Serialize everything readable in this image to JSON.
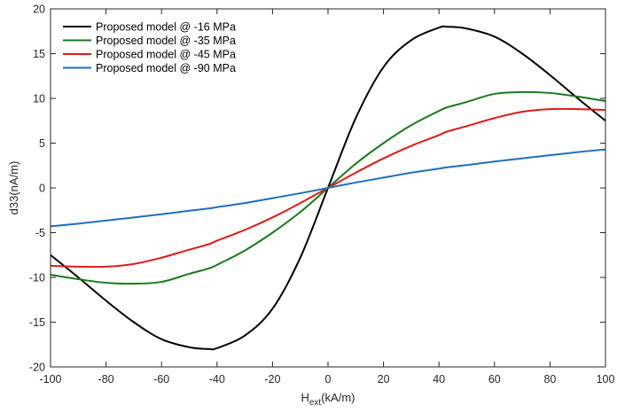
{
  "chart_data": {
    "type": "line",
    "xlabel_main": "H",
    "xlabel_sub": "ext",
    "xlabel_unit": "(kA/m)",
    "ylabel": "d33(nA/m)",
    "xlim": [
      -100,
      100
    ],
    "ylim": [
      -20,
      20
    ],
    "xticks": [
      -100,
      -80,
      -60,
      -40,
      -20,
      0,
      20,
      40,
      60,
      80,
      100
    ],
    "yticks": [
      -20,
      -15,
      -10,
      -5,
      0,
      5,
      10,
      15,
      20
    ],
    "grid": false,
    "legend_position": "top-left",
    "x": [
      -100,
      -90,
      -80,
      -70,
      -60,
      -50,
      -43,
      -40,
      -30,
      -20,
      -10,
      0,
      10,
      20,
      30,
      40,
      43,
      50,
      60,
      70,
      80,
      90,
      100
    ],
    "series": [
      {
        "name": "Proposed model @ -16 MPa",
        "color": "#000000",
        "values": [
          -7.5,
          -10.0,
          -12.6,
          -15.0,
          -16.9,
          -17.8,
          -18.0,
          -17.9,
          -16.5,
          -13.5,
          -7.8,
          0,
          7.8,
          13.5,
          16.5,
          17.9,
          18.0,
          17.8,
          16.9,
          15.0,
          12.6,
          10.0,
          7.5
        ]
      },
      {
        "name": "Proposed model @ -35 MPa",
        "color": "#1a7a1a",
        "values": [
          -9.7,
          -10.2,
          -10.6,
          -10.7,
          -10.5,
          -9.6,
          -9.0,
          -8.6,
          -7.0,
          -5.0,
          -2.7,
          0,
          2.7,
          5.0,
          7.0,
          8.6,
          9.0,
          9.6,
          10.5,
          10.7,
          10.6,
          10.2,
          9.7
        ]
      },
      {
        "name": "Proposed model @ -45 MPa",
        "color": "#e01a1a",
        "values": [
          -8.7,
          -8.8,
          -8.8,
          -8.5,
          -7.8,
          -6.9,
          -6.3,
          -5.9,
          -4.7,
          -3.3,
          -1.7,
          0,
          1.7,
          3.3,
          4.7,
          5.9,
          6.3,
          6.9,
          7.8,
          8.5,
          8.8,
          8.8,
          8.7
        ]
      },
      {
        "name": "Proposed model @ -90 MPa",
        "color": "#1f6fbf",
        "values": [
          -4.3,
          -4.0,
          -3.65,
          -3.3,
          -2.95,
          -2.55,
          -2.3,
          -2.15,
          -1.7,
          -1.15,
          -0.6,
          0,
          0.6,
          1.15,
          1.7,
          2.15,
          2.3,
          2.55,
          2.95,
          3.3,
          3.65,
          4.0,
          4.3
        ]
      }
    ]
  }
}
